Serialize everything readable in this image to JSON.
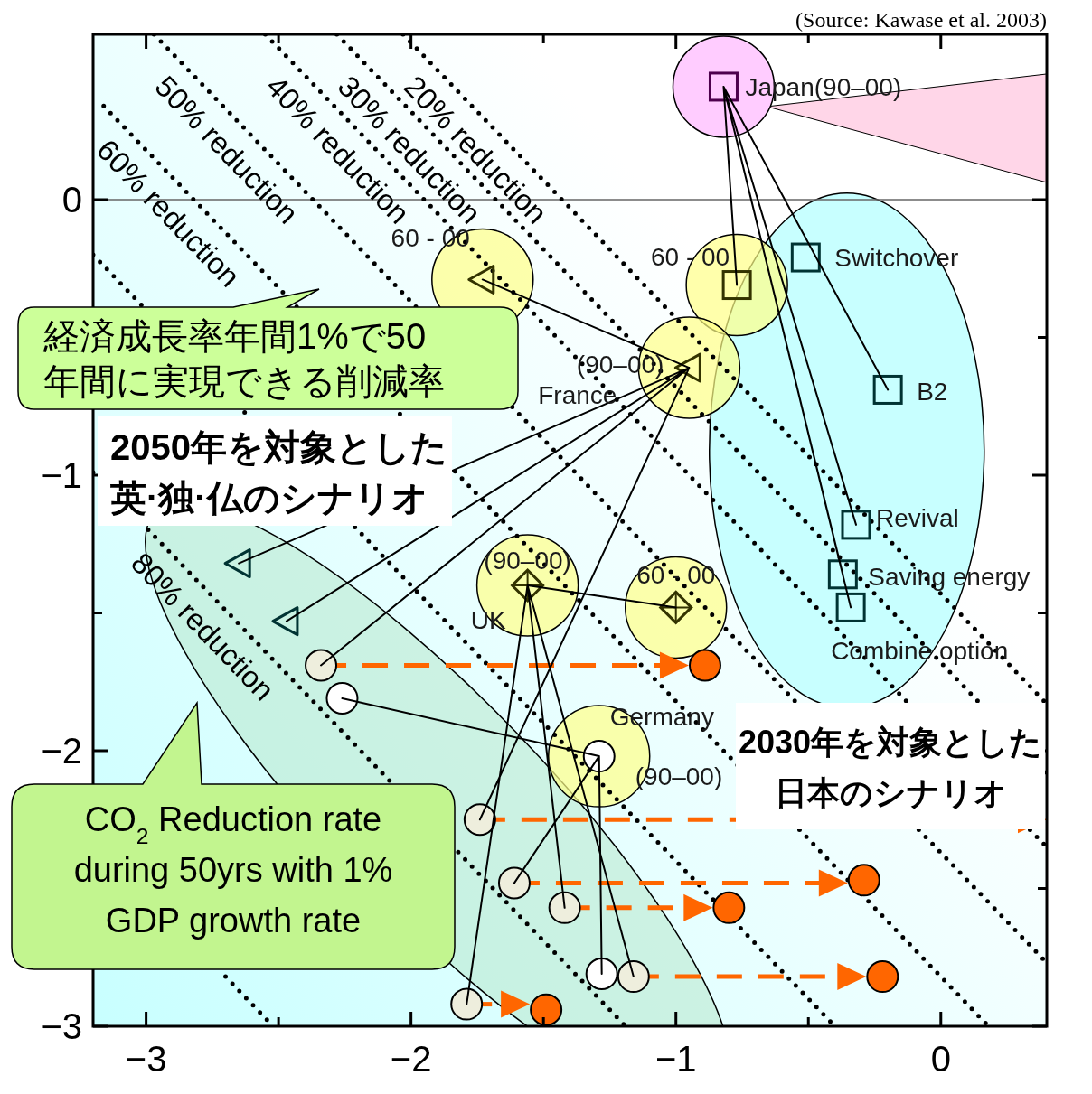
{
  "chart_data": {
    "type": "scatter",
    "xlim": [
      -3.2,
      0.4
    ],
    "ylim": [
      -3,
      0.6
    ],
    "xticks": [
      {
        "value": -3,
        "label": "−3"
      },
      {
        "value": -2.5,
        "label": null
      },
      {
        "value": -2,
        "label": "−2"
      },
      {
        "value": -1.5,
        "label": null
      },
      {
        "value": -1,
        "label": "−1"
      },
      {
        "value": -0.5,
        "label": null
      },
      0
    ],
    "yticks": [
      {
        "value": -3,
        "label": "−3"
      },
      {
        "value": -2.5,
        "label": null
      },
      {
        "value": -2,
        "label": "−2"
      },
      {
        "value": -1.5,
        "label": null
      },
      {
        "value": -1,
        "label": "−1"
      },
      {
        "value": -0.5,
        "label": null
      },
      0
    ],
    "ref_lines": [
      {
        "axis": "y",
        "value": 0,
        "color": "#666666"
      }
    ],
    "series": [
      {
        "type": "line",
        "color": "#000000",
        "line_style": "dotted",
        "x": [
          -2.03,
          0.4
        ],
        "values": [
          0.6,
          -1.83
        ]
      },
      {
        "type": "line",
        "color": "#000000",
        "line_style": "dotted",
        "x": [
          -2.28,
          0.4
        ],
        "values": [
          0.6,
          -2.08
        ]
      },
      {
        "type": "line",
        "color": "#000000",
        "line_style": "dotted",
        "x": [
          -2.55,
          0.4
        ],
        "values": [
          0.6,
          -2.35
        ]
      },
      {
        "type": "line",
        "color": "#000000",
        "line_style": "dotted",
        "x": [
          -2.97,
          0.4
        ],
        "values": [
          0.6,
          -2.77
        ]
      },
      {
        "type": "line",
        "color": "#000000",
        "line_style": "dotted",
        "x": [
          -3.16,
          0.18
        ],
        "values": [
          0.34,
          -3
        ]
      },
      {
        "type": "line",
        "color": "#000000",
        "line_style": "dotted",
        "x": [
          -3.2,
          -0.4
        ],
        "values": [
          -0.2,
          -3
        ]
      },
      {
        "type": "line",
        "color": "#000000",
        "line_style": "dotted",
        "x": [
          -3.2,
          -1.19
        ],
        "values": [
          -0.99,
          -3
        ]
      },
      {
        "type": "line",
        "color": "#000000",
        "line_style": "dotted",
        "x": [
          -2.7,
          -2.52
        ],
        "values": [
          -2.82,
          -3
        ]
      },
      {
        "type": "line",
        "color": "#000000",
        "line_style": "solid",
        "x": [
          -0.82,
          -0.77,
          null,
          -0.82,
          -0.2,
          null,
          -0.82,
          -0.32,
          null,
          -0.82,
          -0.37,
          null,
          -0.82,
          -0.34,
          null,
          -0.95,
          -1.73,
          null,
          -0.95,
          -2.65,
          null,
          -0.95,
          -2.47,
          null,
          -0.95,
          -2.34,
          null,
          -0.95,
          -1.74,
          null,
          -1.56,
          -1.0,
          null,
          -1.56,
          -1.79,
          null,
          -1.56,
          -1.42,
          null,
          -1.56,
          -1.16,
          null,
          -1.29,
          -2.26,
          null,
          -1.29,
          -1.28,
          null,
          -1.29,
          -1.61
        ],
        "values": [
          0.41,
          -0.31,
          null,
          0.41,
          -0.69,
          null,
          0.41,
          -1.18,
          null,
          0.41,
          -1.36,
          null,
          0.41,
          -1.48,
          null,
          -0.61,
          -0.29,
          null,
          -0.61,
          -1.32,
          null,
          -0.61,
          -1.53,
          null,
          -0.61,
          -1.69,
          null,
          -0.61,
          -2.25,
          null,
          -1.4,
          -1.48,
          null,
          -1.4,
          -2.92,
          null,
          -1.4,
          -2.57,
          null,
          -1.4,
          -2.82,
          null,
          -2.02,
          -1.81,
          null,
          -2.02,
          -2.81,
          null,
          -2.02,
          -2.48
        ]
      },
      {
        "marker": "square",
        "colors": [
          "#4d004d",
          "#333300",
          "#003333",
          "#003333",
          "#003333",
          "#003333",
          "#003333"
        ],
        "x": [
          -0.82,
          -0.77,
          -0.51,
          -0.2,
          -0.32,
          -0.37,
          -0.34
        ],
        "values": [
          0.41,
          -0.31,
          -0.21,
          -0.69,
          -1.18,
          -1.36,
          -1.48
        ]
      },
      {
        "marker": "triangle",
        "colors": [
          "#333300",
          "#333300",
          "#003333",
          "#003333"
        ],
        "x": [
          -0.95,
          -1.73,
          -2.65,
          -2.47
        ],
        "values": [
          -0.61,
          -0.29,
          -1.32,
          -1.53
        ]
      },
      {
        "marker": "diamond",
        "color": "#333300",
        "x": [
          -1.56,
          -1.0
        ],
        "values": [
          -1.4,
          -1.48
        ]
      },
      {
        "marker": "circle",
        "color": "#ffffff",
        "x": [
          -1.29,
          -2.26,
          -1.28
        ],
        "values": [
          -2.02,
          -1.81,
          -2.81
        ]
      },
      {
        "marker": "circle",
        "color": "#eeeedd",
        "x": [
          -2.34,
          -1.74,
          -1.61,
          -1.42,
          -1.16,
          -1.79
        ],
        "values": [
          -1.69,
          -2.25,
          -2.48,
          -2.57,
          -2.82,
          -2.92
        ]
      },
      {
        "marker": "circle",
        "color": "#ff6600",
        "x": [
          -0.89,
          null,
          -0.29,
          -0.8,
          -0.22,
          -1.49
        ],
        "values": [
          -1.69,
          null,
          -2.47,
          -2.57,
          -2.82,
          -2.94
        ]
      }
    ],
    "annotations": [
      "(Source: Kawase et al. 2003)",
      "経済成長率年間1%で50年間に実現できる削減率",
      "2050年を対象とした英·独·仏のシナリオ",
      "2030年を対象とした日本のシナリオ",
      "CO$_{2}$ Reduction rate\nduring 50yrs with 1%\nGDP growth rate",
      {
        "text": "Japan(90–00)",
        "x": -0.82,
        "y": 0.41
      },
      {
        "text": "60 - 00",
        "x": -0.77,
        "y": -0.31
      },
      {
        "text": "Switchover",
        "x": -0.51,
        "y": -0.21
      },
      {
        "text": "B2",
        "x": -0.2,
        "y": -0.69
      },
      {
        "text": "Revival",
        "x": -0.32,
        "y": -1.18
      },
      {
        "text": "Saving energy",
        "x": -0.37,
        "y": -1.36
      },
      {
        "text": "Combine option",
        "x": -0.34,
        "y": -1.48
      },
      {
        "text": "60 - 00",
        "x": -1.73,
        "y": -0.29
      },
      {
        "text": "(90–00)",
        "x": -0.95,
        "y": -0.61
      },
      {
        "text": "France",
        "x": -0.95,
        "y": -0.61
      },
      {
        "text": "(90–00)",
        "x": -1.56,
        "y": -1.4
      },
      {
        "text": "UK",
        "x": -1.56,
        "y": -1.4
      },
      {
        "text": "60 - 00",
        "x": -1.0,
        "y": -1.48
      },
      {
        "text": "Germany",
        "x": -1.29,
        "y": -2.02
      },
      {
        "text": "(90–00)",
        "x": -1.29,
        "y": -2.02
      },
      {
        "text": "20% reduction",
        "x": -1.93,
        "y": 0.5
      },
      {
        "text": "30% reduction",
        "x": -2.18,
        "y": 0.5
      },
      {
        "text": "40% reduction",
        "x": -2.45,
        "y": 0.5
      },
      {
        "text": "50% reduction",
        "x": -2.87,
        "y": 0.5
      },
      {
        "text": "60% reduction",
        "x": -3.09,
        "y": 0.27
      },
      {
        "text": "80% reduction",
        "x": -2.96,
        "y": -1.23
      }
    ]
  }
}
